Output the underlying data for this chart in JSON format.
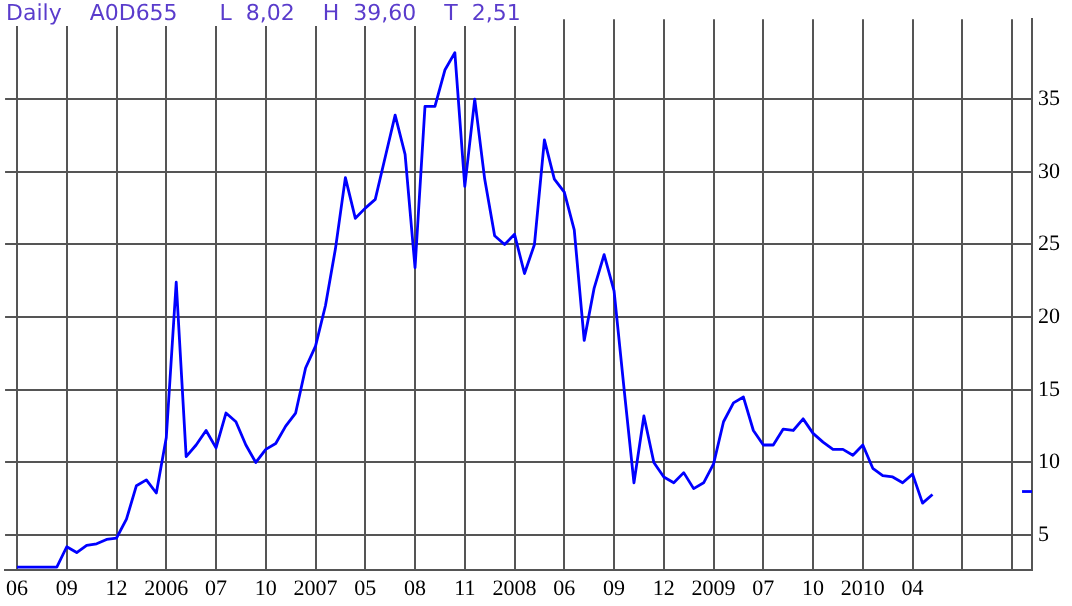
{
  "chart_data": {
    "type": "line",
    "title": "Daily    A0D655      L  8,02    H  39,60    T  2,51",
    "categories": [
      "06",
      null,
      null,
      null,
      null,
      "09",
      null,
      null,
      null,
      null,
      "12",
      null,
      null,
      null,
      null,
      "2006",
      null,
      null,
      null,
      null,
      "07",
      null,
      null,
      null,
      null,
      "10",
      null,
      null,
      null,
      null,
      "2007",
      null,
      null,
      null,
      null,
      "05",
      null,
      null,
      null,
      null,
      "08",
      null,
      null,
      null,
      null,
      "11",
      null,
      null,
      null,
      null,
      "2008",
      null,
      null,
      null,
      null,
      "06",
      null,
      null,
      null,
      null,
      "09",
      null,
      null,
      null,
      null,
      "12",
      null,
      null,
      null,
      null,
      "2009",
      null,
      null,
      null,
      null,
      "07",
      null,
      null,
      null,
      null,
      "10",
      null,
      null,
      null,
      null,
      "2010",
      null,
      null,
      null,
      null,
      "04",
      null,
      null,
      null,
      null,
      null,
      null,
      null,
      null,
      null,
      null,
      null,
      null
    ],
    "ylim": [
      2.6,
      40.5
    ],
    "yticks": [
      5,
      10,
      15,
      20,
      25,
      30,
      35
    ],
    "grid": true,
    "legend": false,
    "marker": "none",
    "line_style": "solid",
    "series": [
      {
        "color": "#0000ff",
        "values": [
          2.8,
          2.8,
          2.8,
          2.8,
          2.8,
          4.2,
          3.8,
          4.3,
          4.4,
          4.7,
          4.8,
          6.1,
          8.4,
          8.8,
          7.9,
          11.7,
          22.4,
          10.4,
          11.2,
          12.2,
          11.0,
          13.4,
          12.8,
          11.2,
          10.0,
          10.9,
          11.3,
          12.5,
          13.4,
          16.5,
          18.0,
          20.8,
          24.7,
          29.6,
          26.8,
          27.5,
          28.1,
          31.0,
          33.9,
          31.2,
          23.4,
          34.5,
          34.5,
          37.0,
          38.2,
          29.0,
          35.0,
          29.5,
          25.6,
          25.0,
          25.7,
          23.0,
          25.0,
          32.2,
          29.5,
          28.6,
          26.0,
          18.4,
          22.0,
          24.3,
          21.8,
          15.1,
          8.6,
          13.2,
          10.0,
          9.0,
          8.6,
          9.3,
          8.2,
          8.6,
          9.9,
          12.8,
          14.1,
          14.5,
          12.2,
          11.2,
          11.2,
          12.3,
          12.2,
          13.0,
          12.0,
          11.4,
          10.9,
          10.9,
          10.5,
          11.2,
          9.6,
          9.1,
          9.0,
          8.6,
          9.2,
          7.2,
          7.8,
          null,
          null,
          null,
          null,
          null,
          null,
          null,
          null,
          null,
          null
        ]
      },
      {
        "color": "#0000ff",
        "values": [
          null,
          null,
          null,
          null,
          null,
          null,
          null,
          null,
          null,
          null,
          null,
          null,
          null,
          null,
          null,
          null,
          null,
          null,
          null,
          null,
          null,
          null,
          null,
          null,
          null,
          null,
          null,
          null,
          null,
          null,
          null,
          null,
          null,
          null,
          null,
          null,
          null,
          null,
          null,
          null,
          null,
          null,
          null,
          null,
          null,
          null,
          null,
          null,
          null,
          null,
          null,
          null,
          null,
          null,
          null,
          null,
          null,
          null,
          null,
          null,
          null,
          null,
          null,
          null,
          null,
          null,
          null,
          null,
          null,
          null,
          null,
          null,
          null,
          null,
          null,
          null,
          null,
          null,
          null,
          null,
          null,
          null,
          null,
          null,
          null,
          null,
          null,
          null,
          null,
          null,
          null,
          null,
          null,
          null,
          null,
          null,
          null,
          null,
          null,
          null,
          null,
          8.0,
          8.0
        ]
      }
    ]
  }
}
